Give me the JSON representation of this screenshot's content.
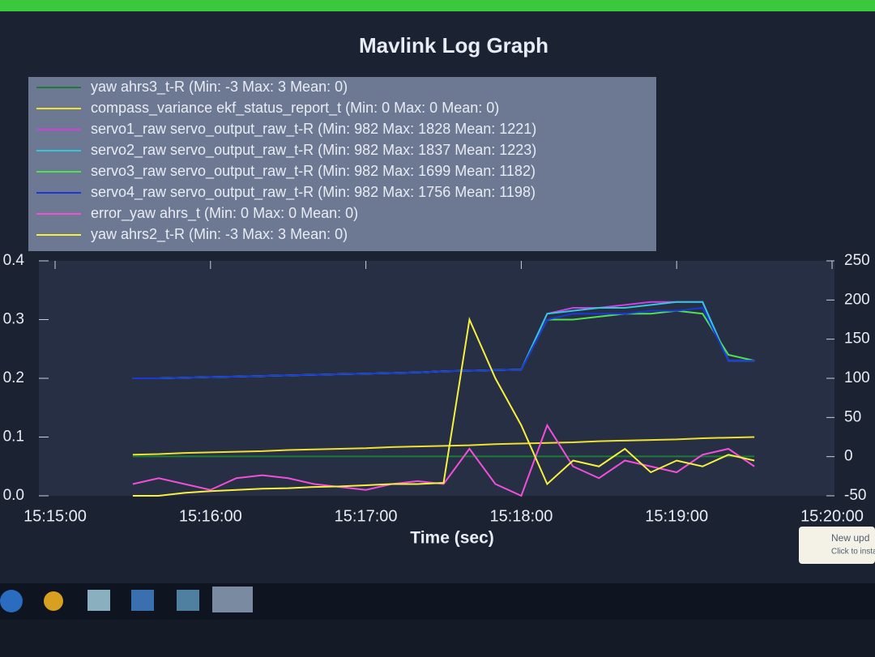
{
  "chart_data": {
    "type": "line",
    "title": "Mavlink Log Graph",
    "xlabel": "Time (sec)",
    "x": [
      30,
      40,
      50,
      60,
      70,
      80,
      90,
      100,
      110,
      120,
      130,
      140,
      150,
      160,
      170,
      180,
      190,
      200,
      210,
      220,
      230,
      240,
      250,
      260,
      270
    ],
    "xlim": [
      0,
      300
    ],
    "xticks": [
      {
        "value": 0,
        "label": "15:15:00"
      },
      {
        "value": 60,
        "label": "15:16:00"
      },
      {
        "value": 120,
        "label": "15:17:00"
      },
      {
        "value": 180,
        "label": "15:18:00"
      },
      {
        "value": 240,
        "label": "15:19:00"
      },
      {
        "value": 300,
        "label": "15:20:00"
      }
    ],
    "ylim": [
      0,
      0.4
    ],
    "yticks": [
      {
        "value": 0,
        "label": "0.0"
      },
      0.1,
      0.2,
      0.3,
      0.4
    ],
    "y2lim": [
      -50,
      250
    ],
    "y2ticks": [
      -50,
      0,
      50,
      100,
      150,
      200,
      250
    ],
    "series": [
      {
        "name": "yaw ahrs3_t-R (Min: -3 Max: 3 Mean: 0)",
        "color": "#1f7a3a",
        "values": [
          0.067,
          0.067,
          0.067,
          0.067,
          0.067,
          0.067,
          0.067,
          0.067,
          0.067,
          0.067,
          0.067,
          0.067,
          0.067,
          0.067,
          0.067,
          0.067,
          0.067,
          0.067,
          0.067,
          0.067,
          0.067,
          0.067,
          0.067,
          0.067,
          0.067
        ]
      },
      {
        "name": "compass_variance ekf_status_report_t (Min: 0 Max: 0 Mean: 0)",
        "color": "#f0e030",
        "values": [
          0.07,
          0.071,
          0.073,
          0.074,
          0.075,
          0.076,
          0.078,
          0.079,
          0.08,
          0.081,
          0.083,
          0.084,
          0.085,
          0.086,
          0.088,
          0.089,
          0.09,
          0.091,
          0.093,
          0.094,
          0.095,
          0.096,
          0.098,
          0.099,
          0.1
        ]
      },
      {
        "name": "servo1_raw servo_output_raw_t-R (Min: 982 Max: 1828 Mean: 1221)",
        "color": "#d040e0",
        "values": [
          0.2,
          0.2,
          0.201,
          0.202,
          0.203,
          0.204,
          0.205,
          0.206,
          0.207,
          0.208,
          0.209,
          0.21,
          0.212,
          0.213,
          0.214,
          0.215,
          0.31,
          0.32,
          0.32,
          0.325,
          0.33,
          0.33,
          0.33,
          0.23,
          0.23
        ]
      },
      {
        "name": "servo2_raw servo_output_raw_t-R (Min: 982 Max: 1837 Mean: 1223)",
        "color": "#30c8e0",
        "values": [
          0.2,
          0.2,
          0.201,
          0.202,
          0.203,
          0.204,
          0.205,
          0.206,
          0.207,
          0.208,
          0.209,
          0.21,
          0.212,
          0.213,
          0.214,
          0.215,
          0.31,
          0.315,
          0.32,
          0.32,
          0.325,
          0.33,
          0.33,
          0.23,
          0.23
        ]
      },
      {
        "name": "servo3_raw servo_output_raw_t-R (Min: 982 Max: 1699 Mean: 1182)",
        "color": "#50e050",
        "values": [
          0.2,
          0.2,
          0.201,
          0.202,
          0.203,
          0.204,
          0.205,
          0.206,
          0.207,
          0.208,
          0.209,
          0.21,
          0.212,
          0.213,
          0.214,
          0.215,
          0.3,
          0.3,
          0.305,
          0.31,
          0.31,
          0.315,
          0.31,
          0.24,
          0.23
        ]
      },
      {
        "name": "servo4_raw servo_output_raw_t-R (Min: 982 Max: 1756 Mean: 1198)",
        "color": "#1838d8",
        "values": [
          0.2,
          0.2,
          0.201,
          0.202,
          0.203,
          0.204,
          0.205,
          0.206,
          0.207,
          0.208,
          0.209,
          0.21,
          0.212,
          0.213,
          0.214,
          0.215,
          0.3,
          0.31,
          0.31,
          0.31,
          0.315,
          0.315,
          0.32,
          0.23,
          0.23
        ]
      },
      {
        "name": "error_yaw ahrs_t (Min: 0 Max: 0 Mean: 0)",
        "color": "#f050d8",
        "values": [
          0.02,
          0.03,
          0.02,
          0.01,
          0.03,
          0.035,
          0.03,
          0.02,
          0.015,
          0.01,
          0.02,
          0.025,
          0.02,
          0.08,
          0.02,
          0,
          0.12,
          0.05,
          0.03,
          0.06,
          0.05,
          0.04,
          0.07,
          0.08,
          0.05
        ]
      },
      {
        "name": "yaw ahrs2_t-R (Min: -3 Max: 3 Mean: 0)",
        "color": "#f8f040",
        "values": [
          0,
          0,
          0.005,
          0.008,
          0.01,
          0.012,
          0.013,
          0.015,
          0.016,
          0.018,
          0.02,
          0.02,
          0.022,
          0.3,
          0.2,
          0.12,
          0.02,
          0.06,
          0.05,
          0.08,
          0.04,
          0.06,
          0.05,
          0.07,
          0.06
        ]
      }
    ]
  },
  "ui": {
    "notification": {
      "title": "New upd",
      "body": "Click to insta"
    }
  }
}
